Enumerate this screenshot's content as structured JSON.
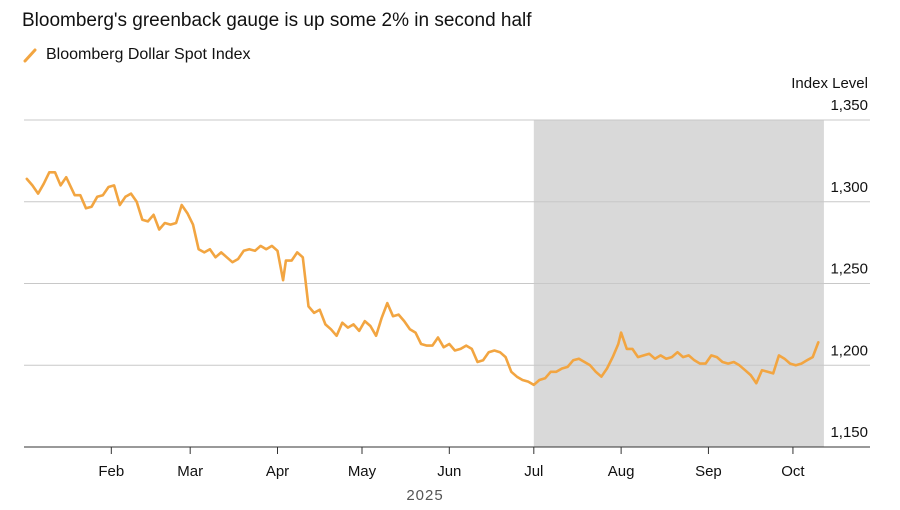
{
  "title": "Bloomberg's greenback gauge is up some 2% in second half",
  "legend": {
    "label": "Bloomberg Dollar Spot Index",
    "color": "#f2a541",
    "icon": "diagonal-line-icon"
  },
  "chart_data": {
    "type": "line",
    "ylabel": "Index Level",
    "year_label": "2025",
    "ylim": [
      1150,
      1350
    ],
    "yticks": [
      1350,
      1300,
      1250,
      1200,
      1150
    ],
    "ytick_labels": [
      "1,350",
      "1,300",
      "1,250",
      "1,200",
      "1,150"
    ],
    "xticks": [
      {
        "label": "Feb",
        "date": "2025-02-01"
      },
      {
        "label": "Mar",
        "date": "2025-03-01"
      },
      {
        "label": "Apr",
        "date": "2025-04-01"
      },
      {
        "label": "May",
        "date": "2025-05-01"
      },
      {
        "label": "Jun",
        "date": "2025-06-01"
      },
      {
        "label": "Jul",
        "date": "2025-07-01"
      },
      {
        "label": "Aug",
        "date": "2025-08-01"
      },
      {
        "label": "Sep",
        "date": "2025-09-01"
      },
      {
        "label": "Oct",
        "date": "2025-10-01"
      }
    ],
    "shaded_region": {
      "start": "2025-07-01",
      "end": "2025-10-12",
      "color": "#d9d9d9"
    },
    "grid": true,
    "line_color": "#f2a541",
    "series": [
      {
        "name": "Bloomberg Dollar Spot Index",
        "points": [
          [
            "2025-01-02",
            1314
          ],
          [
            "2025-01-04",
            1310
          ],
          [
            "2025-01-06",
            1305
          ],
          [
            "2025-01-08",
            1311
          ],
          [
            "2025-01-10",
            1318
          ],
          [
            "2025-01-12",
            1318
          ],
          [
            "2025-01-14",
            1310
          ],
          [
            "2025-01-16",
            1315
          ],
          [
            "2025-01-19",
            1304
          ],
          [
            "2025-01-21",
            1304
          ],
          [
            "2025-01-23",
            1296
          ],
          [
            "2025-01-25",
            1297
          ],
          [
            "2025-01-27",
            1303
          ],
          [
            "2025-01-29",
            1304
          ],
          [
            "2025-01-31",
            1309
          ],
          [
            "2025-02-02",
            1310
          ],
          [
            "2025-02-04",
            1298
          ],
          [
            "2025-02-06",
            1303
          ],
          [
            "2025-02-08",
            1305
          ],
          [
            "2025-02-10",
            1300
          ],
          [
            "2025-02-12",
            1289
          ],
          [
            "2025-02-14",
            1288
          ],
          [
            "2025-02-16",
            1292
          ],
          [
            "2025-02-18",
            1283
          ],
          [
            "2025-02-20",
            1287
          ],
          [
            "2025-02-22",
            1286
          ],
          [
            "2025-02-24",
            1287
          ],
          [
            "2025-02-26",
            1298
          ],
          [
            "2025-02-28",
            1293
          ],
          [
            "2025-03-02",
            1286
          ],
          [
            "2025-03-04",
            1271
          ],
          [
            "2025-03-06",
            1269
          ],
          [
            "2025-03-08",
            1271
          ],
          [
            "2025-03-10",
            1266
          ],
          [
            "2025-03-12",
            1269
          ],
          [
            "2025-03-14",
            1266
          ],
          [
            "2025-03-16",
            1263
          ],
          [
            "2025-03-18",
            1265
          ],
          [
            "2025-03-20",
            1270
          ],
          [
            "2025-03-22",
            1271
          ],
          [
            "2025-03-24",
            1270
          ],
          [
            "2025-03-26",
            1273
          ],
          [
            "2025-03-28",
            1271
          ],
          [
            "2025-03-30",
            1273
          ],
          [
            "2025-04-01",
            1270
          ],
          [
            "2025-04-03",
            1252
          ],
          [
            "2025-04-04",
            1264
          ],
          [
            "2025-04-06",
            1264
          ],
          [
            "2025-04-08",
            1269
          ],
          [
            "2025-04-10",
            1266
          ],
          [
            "2025-04-12",
            1236
          ],
          [
            "2025-04-14",
            1232
          ],
          [
            "2025-04-16",
            1234
          ],
          [
            "2025-04-18",
            1225
          ],
          [
            "2025-04-20",
            1222
          ],
          [
            "2025-04-22",
            1218
          ],
          [
            "2025-04-24",
            1226
          ],
          [
            "2025-04-26",
            1223
          ],
          [
            "2025-04-28",
            1225
          ],
          [
            "2025-04-30",
            1221
          ],
          [
            "2025-05-02",
            1227
          ],
          [
            "2025-05-04",
            1224
          ],
          [
            "2025-05-06",
            1218
          ],
          [
            "2025-05-08",
            1229
          ],
          [
            "2025-05-10",
            1238
          ],
          [
            "2025-05-12",
            1230
          ],
          [
            "2025-05-14",
            1231
          ],
          [
            "2025-05-16",
            1227
          ],
          [
            "2025-05-18",
            1222
          ],
          [
            "2025-05-20",
            1220
          ],
          [
            "2025-05-22",
            1213
          ],
          [
            "2025-05-24",
            1212
          ],
          [
            "2025-05-26",
            1212
          ],
          [
            "2025-05-28",
            1217
          ],
          [
            "2025-05-30",
            1211
          ],
          [
            "2025-06-01",
            1213
          ],
          [
            "2025-06-03",
            1209
          ],
          [
            "2025-06-05",
            1210
          ],
          [
            "2025-06-07",
            1212
          ],
          [
            "2025-06-09",
            1210
          ],
          [
            "2025-06-11",
            1202
          ],
          [
            "2025-06-13",
            1203
          ],
          [
            "2025-06-15",
            1208
          ],
          [
            "2025-06-17",
            1209
          ],
          [
            "2025-06-19",
            1208
          ],
          [
            "2025-06-21",
            1205
          ],
          [
            "2025-06-23",
            1196
          ],
          [
            "2025-06-25",
            1193
          ],
          [
            "2025-06-27",
            1191
          ],
          [
            "2025-06-29",
            1190
          ],
          [
            "2025-07-01",
            1188
          ],
          [
            "2025-07-03",
            1191
          ],
          [
            "2025-07-05",
            1192
          ],
          [
            "2025-07-07",
            1196
          ],
          [
            "2025-07-09",
            1196
          ],
          [
            "2025-07-11",
            1198
          ],
          [
            "2025-07-13",
            1199
          ],
          [
            "2025-07-15",
            1203
          ],
          [
            "2025-07-17",
            1204
          ],
          [
            "2025-07-19",
            1202
          ],
          [
            "2025-07-21",
            1200
          ],
          [
            "2025-07-23",
            1196
          ],
          [
            "2025-07-25",
            1193
          ],
          [
            "2025-07-27",
            1198
          ],
          [
            "2025-07-29",
            1205
          ],
          [
            "2025-07-31",
            1213
          ],
          [
            "2025-08-01",
            1220
          ],
          [
            "2025-08-03",
            1210
          ],
          [
            "2025-08-05",
            1210
          ],
          [
            "2025-08-07",
            1205
          ],
          [
            "2025-08-09",
            1206
          ],
          [
            "2025-08-11",
            1207
          ],
          [
            "2025-08-13",
            1204
          ],
          [
            "2025-08-15",
            1206
          ],
          [
            "2025-08-17",
            1204
          ],
          [
            "2025-08-19",
            1205
          ],
          [
            "2025-08-21",
            1208
          ],
          [
            "2025-08-23",
            1205
          ],
          [
            "2025-08-25",
            1206
          ],
          [
            "2025-08-27",
            1203
          ],
          [
            "2025-08-29",
            1201
          ],
          [
            "2025-08-31",
            1201
          ],
          [
            "2025-09-02",
            1206
          ],
          [
            "2025-09-04",
            1205
          ],
          [
            "2025-09-06",
            1202
          ],
          [
            "2025-09-08",
            1201
          ],
          [
            "2025-09-10",
            1202
          ],
          [
            "2025-09-12",
            1200
          ],
          [
            "2025-09-14",
            1197
          ],
          [
            "2025-09-16",
            1194
          ],
          [
            "2025-09-18",
            1189
          ],
          [
            "2025-09-20",
            1197
          ],
          [
            "2025-09-22",
            1196
          ],
          [
            "2025-09-24",
            1195
          ],
          [
            "2025-09-26",
            1206
          ],
          [
            "2025-09-28",
            1204
          ],
          [
            "2025-09-30",
            1201
          ],
          [
            "2025-10-02",
            1200
          ],
          [
            "2025-10-04",
            1201
          ],
          [
            "2025-10-06",
            1203
          ],
          [
            "2025-10-08",
            1205
          ],
          [
            "2025-10-10",
            1214
          ]
        ]
      }
    ]
  }
}
